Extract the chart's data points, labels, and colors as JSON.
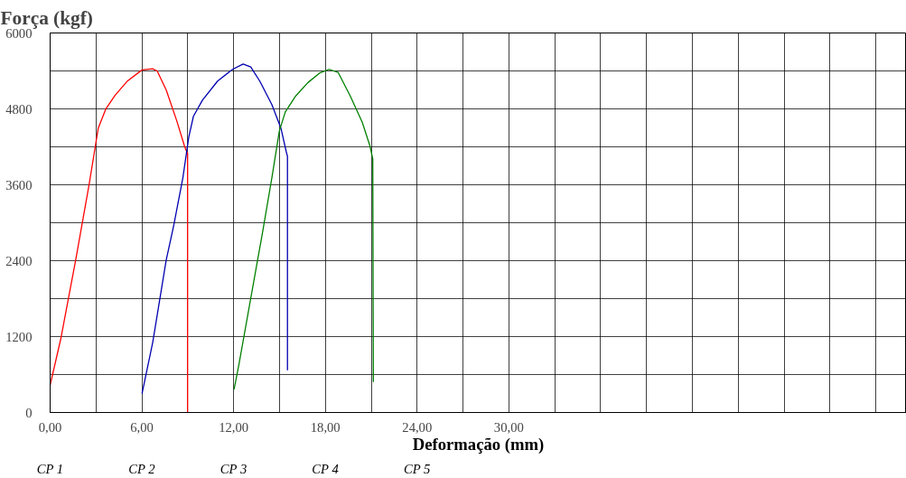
{
  "chart_data": {
    "type": "line",
    "ylabel": "Força (kgf)",
    "xlabel": "Deformação (mm)",
    "xlim": [
      0,
      56
    ],
    "ylim": [
      0,
      6000
    ],
    "xticks": [
      {
        "value": 0,
        "label": "0,00"
      },
      {
        "value": 3,
        "label": null
      },
      {
        "value": 6,
        "label": "6,00"
      },
      {
        "value": 9,
        "label": null
      },
      {
        "value": 12,
        "label": "12,00"
      },
      {
        "value": 15,
        "label": null
      },
      {
        "value": 18,
        "label": "18,00"
      },
      {
        "value": 21,
        "label": null
      },
      {
        "value": 24,
        "label": "24,00"
      },
      {
        "value": 27,
        "label": null
      },
      {
        "value": 30,
        "label": "30,00"
      },
      {
        "value": 33,
        "label": null
      },
      {
        "value": 36,
        "label": null
      },
      {
        "value": 39,
        "label": null
      },
      {
        "value": 42,
        "label": null
      },
      {
        "value": 45,
        "label": null
      },
      {
        "value": 48,
        "label": null
      },
      {
        "value": 51,
        "label": null
      },
      {
        "value": 54,
        "label": null
      }
    ],
    "yticks": [
      0,
      {
        "value": 600,
        "label": null
      },
      1200,
      {
        "value": 1800,
        "label": null
      },
      2400,
      {
        "value": 3000,
        "label": null
      },
      3600,
      {
        "value": 4200,
        "label": null
      },
      4800,
      {
        "value": 5400,
        "label": null
      },
      6000
    ],
    "grid": true,
    "marker": "none",
    "line_style": "solid",
    "series": [
      {
        "color": "#ff0000",
        "x": [
          0,
          0.69,
          1.67,
          2.56,
          2.96,
          3.15,
          3.65,
          4.24,
          5.03,
          6.01,
          6.7,
          7.0,
          7.59,
          8.28,
          8.78,
          8.88,
          8.99,
          8.99
        ],
        "values": [
          432,
          1157,
          2408,
          3620,
          4218,
          4497,
          4803,
          5012,
          5235,
          5416,
          5434,
          5400,
          5100,
          4612,
          4218,
          4150,
          4100,
          0
        ]
      },
      {
        "color": "#0000b0",
        "x": [
          6.01,
          6.71,
          7.59,
          8.09,
          8.68,
          9.07,
          9.37,
          9.96,
          10.95,
          11.93,
          12.62,
          13.12,
          13.71,
          14.5,
          15.09,
          15.44,
          15.52,
          15.52
        ],
        "values": [
          297,
          1110,
          2408,
          2965,
          3708,
          4358,
          4682,
          4938,
          5239,
          5425,
          5509,
          5462,
          5239,
          4868,
          4497,
          4125,
          4050,
          668
        ]
      },
      {
        "color": "#008000",
        "x": [
          12.03,
          12.33,
          13.12,
          13.91,
          14.5,
          14.99,
          15.38,
          16.07,
          16.86,
          17.65,
          18.24,
          18.83,
          19.62,
          20.41,
          20.91,
          21.1,
          21.14
        ],
        "values": [
          366,
          738,
          1806,
          2872,
          3708,
          4451,
          4752,
          5008,
          5216,
          5370,
          5425,
          5378,
          5008,
          4589,
          4218,
          4009,
          483
        ]
      }
    ],
    "annotations": [
      "CP 1",
      "CP 2",
      "CP 3",
      "CP 4",
      "CP 5"
    ]
  }
}
